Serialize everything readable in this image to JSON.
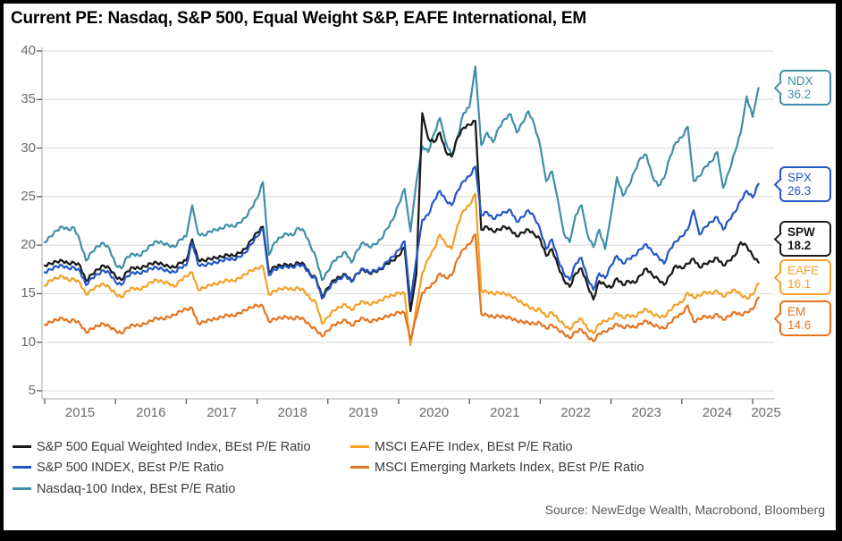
{
  "title": "Current PE: Nasdaq, S&P 500, Equal Weight S&P, EAFE International, EM",
  "source": "Source: NewEdge Wealth, Macrobond, Bloomberg",
  "legend": {
    "columns": [
      [
        "spw",
        "spx",
        "ndx"
      ],
      [
        "eafe",
        "em"
      ]
    ]
  },
  "chart_data": {
    "type": "line",
    "title": "Current PE: Nasdaq, S&P 500, Equal Weight S&P, EAFE International, EM",
    "xlabel": "",
    "ylabel": "",
    "grid": true,
    "legend_position": "bottom",
    "x_start_year": 2015.0,
    "x_step_years": 0.0833333,
    "x_ticks": [
      2015,
      2016,
      2017,
      2018,
      2019,
      2020,
      2021,
      2022,
      2023,
      2024,
      2025
    ],
    "x_tick_labels": [
      "2015",
      "2016",
      "2017",
      "2018",
      "2019",
      "2020",
      "2021",
      "2022",
      "2023",
      "2024",
      "2025"
    ],
    "y_ticks": [
      5,
      10,
      15,
      20,
      25,
      30,
      35,
      40
    ],
    "ylim": [
      5,
      40
    ],
    "series": [
      {
        "id": "spw",
        "name": "S&P 500 Equal Weighted Index, BEst P/E Ratio",
        "color": "#1b1b1b",
        "callout": {
          "label": "SPW",
          "value": "18.2",
          "bold": true
        },
        "values": [
          17.9,
          18.1,
          18.3,
          18.4,
          18.1,
          18.2,
          17.9,
          16.3,
          17.0,
          17.5,
          17.9,
          17.6,
          16.8,
          16.4,
          17.3,
          17.7,
          17.6,
          17.8,
          18.1,
          18.2,
          18.0,
          17.8,
          17.7,
          18.2,
          18.4,
          20.6,
          18.5,
          18.4,
          18.6,
          18.7,
          18.8,
          19.0,
          18.9,
          19.2,
          19.6,
          20.5,
          21.3,
          21.9,
          17.2,
          17.8,
          17.9,
          18.0,
          17.9,
          18.2,
          18.0,
          17.0,
          16.6,
          14.7,
          15.6,
          16.4,
          16.7,
          17.0,
          16.3,
          17.1,
          17.5,
          17.1,
          17.3,
          17.5,
          18.1,
          18.4,
          18.9,
          19.8,
          13.2,
          17.0,
          33.6,
          31.0,
          30.6,
          31.6,
          29.6,
          29.1,
          31.1,
          32.1,
          32.4,
          32.8,
          21.6,
          21.9,
          21.4,
          21.6,
          21.9,
          21.6,
          20.9,
          21.3,
          21.6,
          21.1,
          20.6,
          18.9,
          19.6,
          17.9,
          16.4,
          15.7,
          17.1,
          17.6,
          15.9,
          14.4,
          16.3,
          15.9,
          15.6,
          16.6,
          15.9,
          16.3,
          16.1,
          16.9,
          17.6,
          16.9,
          16.5,
          15.9,
          16.9,
          17.9,
          17.6,
          18.1,
          18.6,
          17.7,
          18.1,
          18.3,
          18.7,
          17.9,
          18.4,
          18.9,
          20.3,
          19.9,
          18.9,
          18.2
        ]
      },
      {
        "id": "spx",
        "name": "S&P 500 INDEX, BEst P/E Ratio",
        "color": "#2356c5",
        "callout": {
          "label": "SPX",
          "value": "26.3",
          "bold": false
        },
        "values": [
          17.2,
          17.5,
          17.8,
          17.9,
          17.6,
          17.7,
          17.3,
          15.9,
          16.6,
          17.0,
          17.4,
          17.1,
          16.2,
          15.9,
          16.8,
          17.2,
          17.1,
          17.3,
          17.6,
          17.7,
          17.5,
          17.3,
          17.2,
          17.7,
          17.9,
          20.3,
          18.0,
          17.9,
          18.1,
          18.2,
          18.4,
          18.6,
          18.5,
          18.8,
          19.2,
          20.1,
          20.9,
          21.7,
          16.9,
          17.5,
          17.7,
          17.8,
          17.7,
          18.0,
          17.8,
          16.9,
          16.5,
          14.5,
          15.4,
          16.2,
          16.5,
          16.9,
          16.2,
          17.1,
          17.6,
          17.2,
          17.4,
          17.6,
          18.3,
          18.8,
          19.5,
          20.4,
          14.2,
          18.6,
          22.6,
          23.1,
          24.6,
          25.6,
          24.6,
          24.1,
          25.6,
          26.6,
          27.1,
          28.1,
          23.1,
          23.4,
          22.7,
          23.1,
          23.4,
          23.6,
          22.4,
          22.9,
          23.6,
          22.9,
          21.6,
          19.6,
          20.6,
          18.6,
          17.1,
          16.4,
          18.1,
          18.7,
          16.6,
          15.4,
          17.1,
          16.6,
          17.9,
          18.9,
          18.1,
          18.6,
          18.9,
          19.6,
          20.1,
          19.3,
          18.8,
          18.1,
          19.6,
          20.4,
          20.9,
          21.6,
          23.6,
          21.1,
          21.9,
          22.4,
          22.9,
          21.6,
          22.6,
          23.4,
          24.6,
          25.6,
          24.9,
          26.3
        ]
      },
      {
        "id": "ndx",
        "name": "Nasdaq-100 Index, BEst P/E Ratio",
        "color": "#3f8fa9",
        "callout": {
          "label": "NDX",
          "value": "36.2",
          "bold": false
        },
        "values": [
          20.3,
          20.9,
          21.5,
          21.9,
          21.6,
          21.8,
          20.4,
          18.4,
          19.3,
          19.9,
          20.2,
          19.6,
          18.0,
          17.6,
          18.8,
          19.1,
          18.9,
          19.4,
          20.0,
          20.4,
          20.2,
          20.0,
          19.8,
          20.6,
          20.9,
          24.1,
          21.2,
          21.0,
          21.4,
          21.6,
          21.7,
          22.1,
          21.9,
          22.3,
          22.8,
          23.8,
          24.8,
          26.5,
          19.0,
          20.3,
          20.8,
          21.2,
          21.0,
          21.8,
          21.4,
          20.0,
          18.7,
          16.4,
          17.3,
          18.4,
          18.8,
          19.3,
          18.2,
          19.5,
          20.3,
          19.8,
          20.1,
          20.6,
          21.7,
          22.6,
          24.2,
          25.8,
          21.4,
          26.5,
          30.2,
          29.6,
          31.5,
          33.1,
          30.6,
          29.2,
          31.2,
          33.6,
          34.2,
          38.4,
          30.3,
          31.6,
          30.6,
          32.1,
          33.0,
          33.5,
          31.6,
          32.6,
          33.8,
          32.4,
          30.2,
          26.6,
          27.6,
          24.6,
          21.2,
          20.3,
          23.1,
          24.1,
          21.1,
          19.8,
          21.6,
          19.6,
          23.1,
          27.0,
          25.1,
          26.1,
          27.6,
          29.0,
          29.3,
          27.1,
          26.1,
          26.9,
          29.1,
          30.6,
          31.1,
          32.2,
          26.6,
          27.1,
          28.1,
          28.6,
          29.6,
          25.9,
          27.6,
          29.6,
          31.6,
          35.3,
          33.2,
          36.2
        ]
      },
      {
        "id": "eafe",
        "name": "MSCI EAFE Index, BEst P/E Ratio",
        "color": "#f5a028",
        "callout": {
          "label": "EAFE",
          "value": "16.1",
          "bold": false
        },
        "values": [
          15.8,
          16.4,
          16.6,
          16.8,
          16.4,
          16.5,
          16.1,
          14.9,
          15.4,
          15.8,
          16.0,
          15.6,
          15.0,
          14.6,
          15.3,
          15.6,
          15.4,
          15.7,
          16.2,
          16.4,
          16.2,
          16.1,
          15.7,
          16.4,
          16.8,
          17.2,
          15.4,
          15.6,
          15.9,
          16.0,
          16.2,
          16.4,
          16.3,
          16.6,
          17.0,
          17.4,
          17.6,
          17.8,
          14.9,
          15.3,
          15.5,
          15.6,
          15.4,
          15.6,
          15.3,
          14.5,
          14.1,
          11.9,
          12.6,
          13.3,
          13.6,
          13.9,
          13.3,
          13.9,
          14.2,
          13.9,
          14.1,
          14.3,
          14.7,
          14.8,
          15.1,
          15.0,
          9.7,
          13.6,
          17.1,
          18.6,
          19.6,
          21.1,
          20.1,
          19.6,
          22.1,
          23.6,
          24.1,
          25.3,
          15.3,
          15.2,
          15.0,
          15.1,
          15.0,
          14.8,
          14.4,
          14.0,
          13.7,
          13.3,
          13.4,
          12.6,
          13.1,
          12.4,
          11.8,
          11.3,
          12.1,
          12.4,
          11.4,
          10.9,
          11.9,
          12.2,
          12.4,
          13.0,
          12.5,
          12.8,
          12.6,
          13.1,
          13.4,
          12.9,
          12.7,
          12.6,
          13.3,
          13.9,
          14.1,
          15.1,
          14.6,
          14.8,
          15.2,
          15.0,
          15.3,
          14.7,
          15.1,
          15.4,
          14.9,
          14.5,
          14.9,
          16.1
        ]
      },
      {
        "id": "em",
        "name": "MSCI Emerging Markets Index, BEst P/E Ratio",
        "color": "#e4741f",
        "callout": {
          "label": "EM",
          "value": "14.6",
          "bold": false
        },
        "values": [
          11.8,
          12.1,
          12.3,
          12.5,
          12.1,
          12.3,
          11.9,
          11.0,
          11.4,
          11.7,
          11.9,
          11.6,
          11.2,
          10.9,
          11.5,
          11.8,
          11.7,
          11.9,
          12.2,
          12.5,
          12.4,
          12.6,
          12.8,
          13.2,
          13.4,
          13.5,
          11.9,
          12.1,
          12.3,
          12.4,
          12.6,
          12.8,
          12.7,
          13.0,
          13.3,
          13.6,
          13.8,
          13.7,
          12.1,
          12.4,
          12.5,
          12.6,
          12.4,
          12.6,
          12.3,
          11.7,
          11.3,
          10.6,
          11.2,
          11.8,
          12.0,
          12.3,
          11.7,
          12.2,
          12.5,
          12.1,
          12.3,
          12.4,
          12.7,
          12.8,
          13.1,
          13.0,
          10.3,
          12.6,
          15.1,
          15.6,
          16.1,
          17.1,
          16.6,
          16.9,
          18.6,
          19.6,
          20.1,
          21.1,
          12.9,
          12.8,
          12.6,
          12.7,
          12.6,
          12.5,
          12.2,
          12.1,
          12.0,
          11.9,
          12.0,
          11.4,
          11.8,
          11.3,
          10.9,
          10.4,
          11.1,
          11.3,
          10.6,
          10.1,
          10.9,
          11.1,
          11.4,
          11.9,
          11.5,
          11.7,
          11.5,
          11.9,
          12.2,
          11.8,
          11.6,
          11.4,
          12.0,
          12.6,
          12.9,
          13.8,
          12.1,
          12.4,
          12.7,
          12.5,
          12.9,
          12.3,
          12.7,
          13.1,
          12.8,
          13.1,
          13.4,
          14.6
        ]
      }
    ],
    "colors": {
      "grid": "#d8d8d8",
      "axis": "#a8a8a8",
      "tick": "#5a5a5a",
      "tick_text": "#6b6b6b",
      "frame": "#000000"
    }
  }
}
